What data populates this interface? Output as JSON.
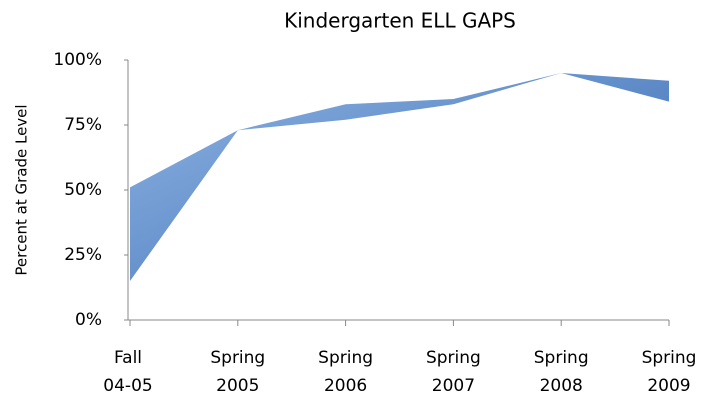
{
  "chart_data": {
    "type": "area",
    "title": "Kindergarten ELL GAPS",
    "y_label": "Percent at Grade Level",
    "categories": [
      [
        "Fall",
        "04-05"
      ],
      [
        "Spring",
        "2005"
      ],
      [
        "Spring",
        "2006"
      ],
      [
        "Spring",
        "2007"
      ],
      [
        "Spring",
        "2008"
      ],
      [
        "Spring",
        "2009"
      ]
    ],
    "series": [
      {
        "color": "#3f74bd",
        "values": [
          51,
          73,
          83,
          85,
          95,
          92
        ]
      },
      {
        "color": "#ffffff",
        "values": [
          15,
          73,
          77,
          83,
          95,
          84
        ]
      }
    ],
    "ylim": [
      0,
      100
    ],
    "yticks": [
      {
        "value": 0,
        "label": "0%"
      },
      {
        "value": 25,
        "label": "25%"
      },
      {
        "value": 50,
        "label": "50%"
      },
      {
        "value": 75,
        "label": "75%"
      },
      {
        "value": 100,
        "label": "100%"
      }
    ]
  }
}
